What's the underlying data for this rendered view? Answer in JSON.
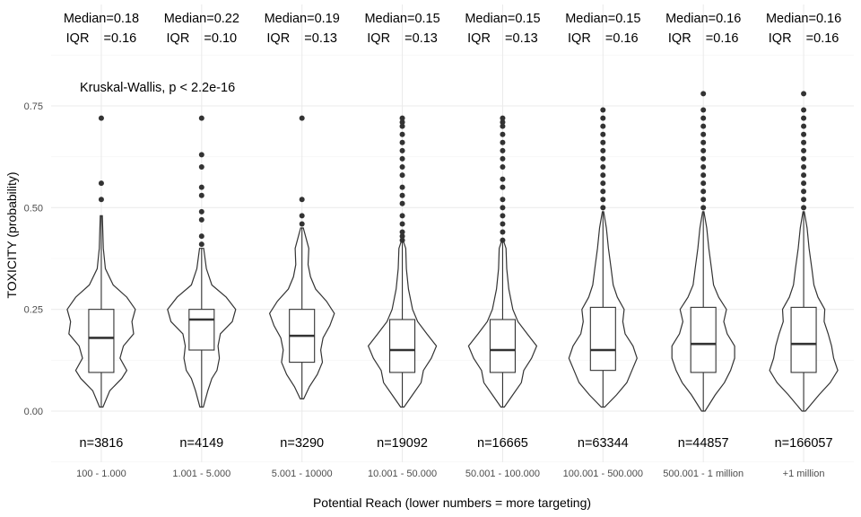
{
  "chart_data": {
    "type": "violin",
    "xlabel": "Potential Reach (lower numbers = more targeting)",
    "ylabel": "TOXICITY (probability)",
    "ylim": [
      -0.18,
      1.18
    ],
    "yticks": [
      0.0,
      0.25,
      0.5,
      0.75
    ],
    "ytick_labels": [
      "0.00",
      "0.25",
      "0.50",
      "0.75"
    ],
    "grid": true,
    "legend": "none",
    "test_annotation": "Kruskal-Wallis, p < 2.2e-16",
    "median_label_prefix": "Median=",
    "iqr_label": "IQR    =",
    "categories": [
      "100 - 1.000",
      "1.001 - 5.000",
      "5.001 - 10000",
      "10.001 - 50.000",
      "50.001 - 100.000",
      "100.001 - 500.000",
      "500.001 - 1 million",
      "+1 million"
    ],
    "groups": [
      {
        "median_text": "Median=0.18",
        "iqr_text": "IQR    =0.16",
        "n_text": "n=3816",
        "median": 0.18,
        "q1": 0.095,
        "q3": 0.25,
        "whisker_low": 0.01,
        "whisker_high": 0.48,
        "outliers": [
          0.52,
          0.56,
          0.72
        ],
        "density": [
          [
            0.01,
            0.05
          ],
          [
            0.05,
            0.25
          ],
          [
            0.08,
            0.6
          ],
          [
            0.1,
            0.75
          ],
          [
            0.13,
            0.55
          ],
          [
            0.16,
            0.65
          ],
          [
            0.19,
            0.95
          ],
          [
            0.22,
            0.9
          ],
          [
            0.25,
            1.0
          ],
          [
            0.28,
            0.75
          ],
          [
            0.31,
            0.35
          ],
          [
            0.35,
            0.12
          ],
          [
            0.4,
            0.06
          ],
          [
            0.48,
            0.03
          ]
        ]
      },
      {
        "median_text": "Median=0.22",
        "iqr_text": "IQR    =0.10",
        "n_text": "n=4149",
        "median": 0.225,
        "q1": 0.15,
        "q3": 0.25,
        "whisker_low": 0.01,
        "whisker_high": 0.4,
        "outliers": [
          0.41,
          0.43,
          0.47,
          0.49,
          0.53,
          0.55,
          0.6,
          0.63,
          0.72
        ],
        "density": [
          [
            0.01,
            0.05
          ],
          [
            0.05,
            0.18
          ],
          [
            0.08,
            0.3
          ],
          [
            0.1,
            0.45
          ],
          [
            0.13,
            0.52
          ],
          [
            0.16,
            0.48
          ],
          [
            0.19,
            0.55
          ],
          [
            0.22,
            0.9
          ],
          [
            0.25,
            1.0
          ],
          [
            0.28,
            0.72
          ],
          [
            0.31,
            0.3
          ],
          [
            0.35,
            0.14
          ],
          [
            0.4,
            0.06
          ]
        ]
      },
      {
        "median_text": "Median=0.19",
        "iqr_text": "IQR    =0.13",
        "n_text": "n=3290",
        "median": 0.185,
        "q1": 0.12,
        "q3": 0.25,
        "whisker_low": 0.03,
        "whisker_high": 0.45,
        "outliers": [
          0.46,
          0.48,
          0.52,
          0.72
        ],
        "density": [
          [
            0.03,
            0.05
          ],
          [
            0.06,
            0.22
          ],
          [
            0.09,
            0.45
          ],
          [
            0.12,
            0.6
          ],
          [
            0.15,
            0.55
          ],
          [
            0.18,
            0.62
          ],
          [
            0.21,
            0.82
          ],
          [
            0.24,
            0.95
          ],
          [
            0.27,
            0.72
          ],
          [
            0.3,
            0.4
          ],
          [
            0.33,
            0.25
          ],
          [
            0.36,
            0.18
          ],
          [
            0.4,
            0.2
          ],
          [
            0.45,
            0.04
          ]
        ]
      },
      {
        "median_text": "Median=0.15",
        "iqr_text": "IQR    =0.13",
        "n_text": "n=19092",
        "median": 0.15,
        "q1": 0.095,
        "q3": 0.225,
        "whisker_low": 0.01,
        "whisker_high": 0.42,
        "outliers": [
          0.42,
          0.43,
          0.44,
          0.46,
          0.48,
          0.51,
          0.53,
          0.55,
          0.58,
          0.6,
          0.62,
          0.64,
          0.66,
          0.68,
          0.7,
          0.71,
          0.72
        ],
        "density": [
          [
            0.01,
            0.05
          ],
          [
            0.04,
            0.3
          ],
          [
            0.07,
            0.55
          ],
          [
            0.1,
            0.62
          ],
          [
            0.13,
            0.85
          ],
          [
            0.16,
            1.0
          ],
          [
            0.19,
            0.72
          ],
          [
            0.22,
            0.45
          ],
          [
            0.25,
            0.3
          ],
          [
            0.3,
            0.18
          ],
          [
            0.35,
            0.12
          ],
          [
            0.4,
            0.1
          ],
          [
            0.42,
            0.02
          ]
        ]
      },
      {
        "median_text": "Median=0.15",
        "iqr_text": "IQR    =0.13",
        "n_text": "n=16665",
        "median": 0.15,
        "q1": 0.095,
        "q3": 0.225,
        "whisker_low": 0.01,
        "whisker_high": 0.42,
        "outliers": [
          0.42,
          0.44,
          0.46,
          0.48,
          0.5,
          0.52,
          0.55,
          0.57,
          0.6,
          0.62,
          0.64,
          0.66,
          0.68,
          0.7,
          0.71,
          0.72
        ],
        "density": [
          [
            0.01,
            0.05
          ],
          [
            0.04,
            0.3
          ],
          [
            0.07,
            0.55
          ],
          [
            0.1,
            0.62
          ],
          [
            0.13,
            0.85
          ],
          [
            0.16,
            1.0
          ],
          [
            0.19,
            0.72
          ],
          [
            0.22,
            0.45
          ],
          [
            0.25,
            0.3
          ],
          [
            0.3,
            0.18
          ],
          [
            0.35,
            0.12
          ],
          [
            0.4,
            0.1
          ],
          [
            0.42,
            0.02
          ]
        ]
      },
      {
        "median_text": "Median=0.15",
        "iqr_text": "IQR    =0.16",
        "n_text": "n=63344",
        "median": 0.15,
        "q1": 0.1,
        "q3": 0.255,
        "whisker_low": 0.01,
        "whisker_high": 0.49,
        "outliers": [
          0.5,
          0.52,
          0.54,
          0.56,
          0.58,
          0.6,
          0.62,
          0.64,
          0.66,
          0.68,
          0.7,
          0.72,
          0.74
        ],
        "density": [
          [
            0.01,
            0.05
          ],
          [
            0.04,
            0.4
          ],
          [
            0.07,
            0.7
          ],
          [
            0.1,
            0.85
          ],
          [
            0.13,
            1.0
          ],
          [
            0.16,
            0.88
          ],
          [
            0.19,
            0.65
          ],
          [
            0.22,
            0.58
          ],
          [
            0.25,
            0.62
          ],
          [
            0.28,
            0.42
          ],
          [
            0.31,
            0.3
          ],
          [
            0.35,
            0.24
          ],
          [
            0.4,
            0.16
          ],
          [
            0.45,
            0.1
          ],
          [
            0.49,
            0.02
          ]
        ]
      },
      {
        "median_text": "Median=0.16",
        "iqr_text": "IQR    =0.16",
        "n_text": "n=44857",
        "median": 0.165,
        "q1": 0.095,
        "q3": 0.255,
        "whisker_low": 0.0,
        "whisker_high": 0.49,
        "outliers": [
          0.5,
          0.52,
          0.54,
          0.56,
          0.58,
          0.6,
          0.62,
          0.64,
          0.66,
          0.68,
          0.7,
          0.72,
          0.74,
          0.78
        ],
        "density": [
          [
            0.0,
            0.05
          ],
          [
            0.04,
            0.35
          ],
          [
            0.07,
            0.62
          ],
          [
            0.1,
            0.8
          ],
          [
            0.13,
            0.92
          ],
          [
            0.16,
            0.92
          ],
          [
            0.19,
            0.7
          ],
          [
            0.22,
            0.6
          ],
          [
            0.25,
            0.68
          ],
          [
            0.28,
            0.45
          ],
          [
            0.31,
            0.3
          ],
          [
            0.35,
            0.24
          ],
          [
            0.4,
            0.16
          ],
          [
            0.45,
            0.1
          ],
          [
            0.49,
            0.02
          ]
        ]
      },
      {
        "median_text": "Median=0.16",
        "iqr_text": "IQR    =0.16",
        "n_text": "n=166057",
        "median": 0.165,
        "q1": 0.095,
        "q3": 0.255,
        "whisker_low": 0.0,
        "whisker_high": 0.49,
        "outliers": [
          0.5,
          0.52,
          0.54,
          0.56,
          0.58,
          0.6,
          0.62,
          0.64,
          0.66,
          0.68,
          0.7,
          0.72,
          0.74,
          0.78
        ],
        "density": [
          [
            0.0,
            0.05
          ],
          [
            0.04,
            0.45
          ],
          [
            0.07,
            0.78
          ],
          [
            0.1,
            1.0
          ],
          [
            0.13,
            0.88
          ],
          [
            0.16,
            0.82
          ],
          [
            0.19,
            0.72
          ],
          [
            0.22,
            0.6
          ],
          [
            0.25,
            0.62
          ],
          [
            0.28,
            0.42
          ],
          [
            0.31,
            0.3
          ],
          [
            0.35,
            0.24
          ],
          [
            0.4,
            0.16
          ],
          [
            0.45,
            0.1
          ],
          [
            0.49,
            0.02
          ]
        ]
      }
    ]
  }
}
